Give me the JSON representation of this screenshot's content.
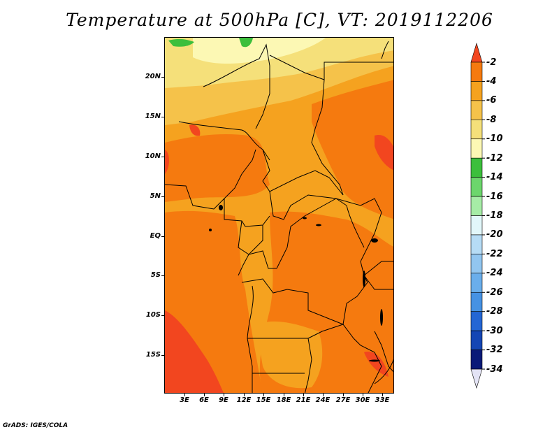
{
  "title": "Temperature at 500hPa [C], VT: 2019112206",
  "credit": "GrADS: IGES/COLA",
  "map": {
    "lat_labels": [
      "20N",
      "15N",
      "10N",
      "5N",
      "EQ",
      "5S",
      "10S",
      "15S"
    ],
    "lon_labels": [
      "3E",
      "6E",
      "9E",
      "12E",
      "15E",
      "18E",
      "21E",
      "24E",
      "27E",
      "30E",
      "33E"
    ]
  },
  "colorbar": {
    "labels": [
      "-2",
      "-4",
      "-6",
      "-8",
      "-10",
      "-12",
      "-14",
      "-16",
      "-18",
      "-20",
      "-22",
      "-24",
      "-26",
      "-28",
      "-30",
      "-32",
      "-34"
    ],
    "colors": [
      "#f2461f",
      "#f57a0f",
      "#f5a21f",
      "#f5c24a",
      "#f5e07a",
      "#fcf8b4",
      "#3cbf3c",
      "#6cd66c",
      "#a6eca6",
      "#e2f7fa",
      "#b6dcf5",
      "#92c6f0",
      "#6aaeeb",
      "#4692e3",
      "#2466d4",
      "#1446b4",
      "#0a1a78",
      "#e3e3f5"
    ]
  }
}
